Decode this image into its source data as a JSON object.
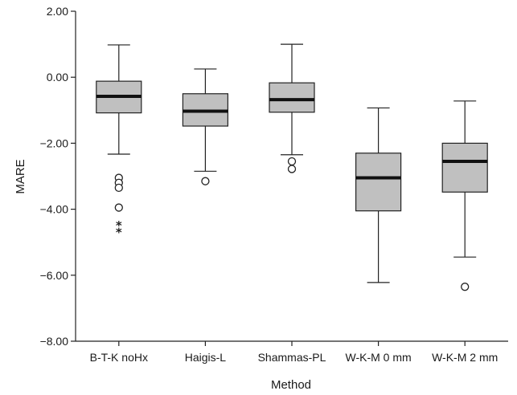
{
  "chart_data": {
    "type": "boxplot",
    "xlabel": "Method",
    "ylabel": "MARE",
    "ylim": [
      -8,
      2
    ],
    "yticks": [
      2,
      0,
      -2,
      -4,
      -6,
      -8
    ],
    "ytick_labels": [
      "2.00",
      "0.00",
      "−2.00",
      "−4.00",
      "−6.00",
      "−8.00"
    ],
    "categories": [
      "B-T-K noHx",
      "Haigis-L",
      "Shammas-PL",
      "W-K-M 0 mm",
      "W-K-M 2 mm"
    ],
    "box_color": "#c0c0c0",
    "extreme_marker": "*",
    "boxes": [
      {
        "min": -2.33,
        "q1": -1.08,
        "median": -0.58,
        "q3": -0.12,
        "max": 0.98,
        "outliers": [
          -3.05,
          -3.2,
          -3.35,
          -3.95
        ],
        "extremes": [
          -4.45,
          -4.65
        ]
      },
      {
        "min": -2.85,
        "q1": -1.48,
        "median": -1.03,
        "q3": -0.5,
        "max": 0.25,
        "outliers": [
          -3.15
        ],
        "extremes": []
      },
      {
        "min": -2.35,
        "q1": -1.06,
        "median": -0.68,
        "q3": -0.17,
        "max": 1.0,
        "outliers": [
          -2.55,
          -2.78
        ],
        "extremes": []
      },
      {
        "min": -6.22,
        "q1": -4.05,
        "median": -3.05,
        "q3": -2.3,
        "max": -0.93,
        "outliers": [],
        "extremes": []
      },
      {
        "min": -5.45,
        "q1": -3.48,
        "median": -2.55,
        "q3": -2.0,
        "max": -0.72,
        "outliers": [
          -6.35
        ],
        "extremes": []
      }
    ]
  }
}
